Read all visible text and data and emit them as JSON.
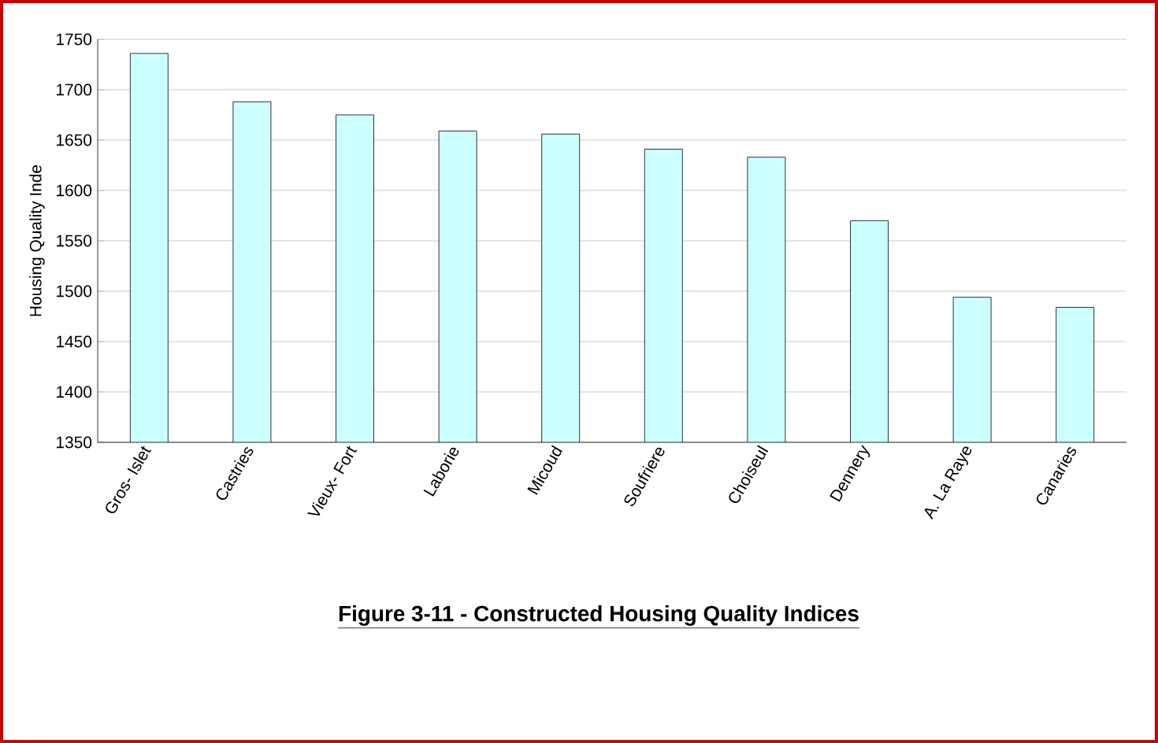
{
  "chart_data": {
    "type": "bar",
    "title": "Figure 3-11 - Constructed Housing Quality Indices",
    "ylabel": "Housing Quality Inde",
    "categories": [
      "Gros- Islet",
      "Castries",
      "Vieux- Fort",
      "Laborie",
      "Micoud",
      "Soufriere",
      "Choiseul",
      "Dennery",
      "A. La Raye",
      "Canaries"
    ],
    "values": [
      1736,
      1688,
      1675,
      1659,
      1656,
      1641,
      1633,
      1570,
      1494,
      1484
    ],
    "color": "#ccffff",
    "ylim": [
      1350,
      1750
    ],
    "yticks": [
      1350,
      1400,
      1450,
      1500,
      1550,
      1600,
      1650,
      1700,
      1750
    ],
    "grid": "y"
  }
}
